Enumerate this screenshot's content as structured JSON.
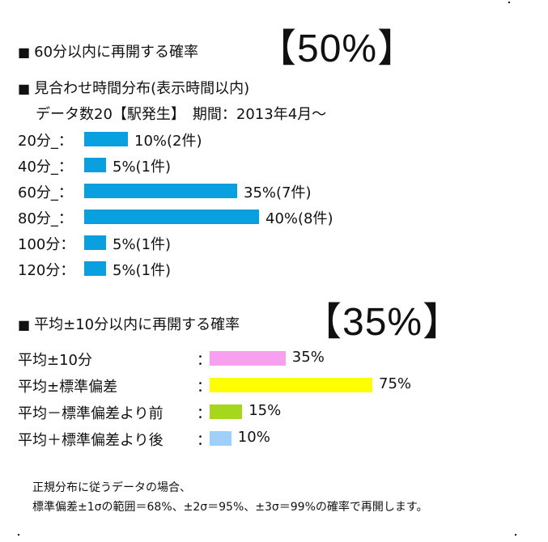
{
  "section1": {
    "title": "60分以内に再開する確率",
    "big_percent": "【50%】",
    "dist_title": "見合わせ時間分布(表示時間以内)",
    "subtitle": "データ数20【駅発生】　期間：2013年4月～"
  },
  "section2": {
    "title": "平均±10分以内に再開する確率",
    "big_percent": "【35%】"
  },
  "note": {
    "line1": "正規分布に従うデータの場合、",
    "line2": "標準偏差±1σの範囲＝68%、±2σ＝95%、±3σ＝99%の確率で再開します。"
  },
  "chart_data": [
    {
      "type": "bar",
      "orientation": "horizontal",
      "categories": [
        "20分_：",
        "40分_：",
        "60分_：",
        "80分_：",
        "100分：",
        "120分："
      ],
      "values": [
        10,
        5,
        35,
        40,
        5,
        5
      ],
      "value_labels": [
        "10%(2件)",
        "5%(1件)",
        "35%(7件)",
        "40%(8件)",
        "5%(1件)",
        "5%(1件)"
      ],
      "color": "#0aa0e0"
    },
    {
      "type": "bar",
      "orientation": "horizontal",
      "categories": [
        "平均±10分",
        "平均±標準偏差",
        "平均－標準偏差より前",
        "平均＋標準偏差より後"
      ],
      "colon": "：",
      "values": [
        35,
        75,
        15,
        10
      ],
      "value_labels": [
        "35%",
        "75%",
        "15%",
        "10%"
      ],
      "colors": [
        "#f7a0f0",
        "#ffff00",
        "#a5d81c",
        "#a0cffa"
      ]
    }
  ]
}
